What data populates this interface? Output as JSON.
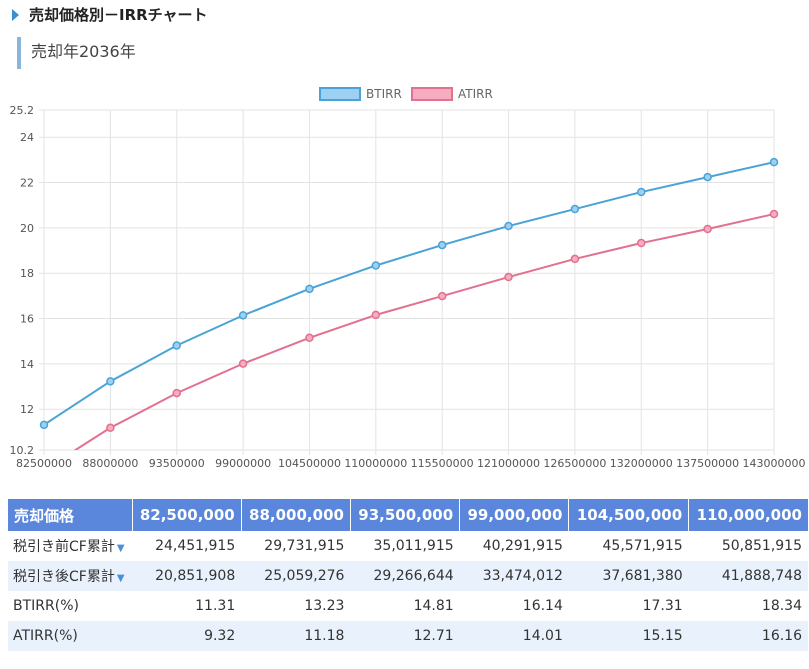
{
  "title": "売却価格別－IRRチャート",
  "subtitle": "売却年2036年",
  "chart_data": {
    "type": "line",
    "x": [
      "82500000",
      "88000000",
      "93500000",
      "99000000",
      "104500000",
      "110000000",
      "115500000",
      "121000000",
      "126500000",
      "132000000",
      "137500000",
      "143000000"
    ],
    "series": [
      {
        "name": "BTIRR",
        "color": "#4aa3d6",
        "fill": "#9dd0f3",
        "values": [
          11.31,
          13.23,
          14.81,
          16.14,
          17.31,
          18.34,
          19.24,
          20.08,
          20.83,
          21.58,
          22.24,
          22.9
        ]
      },
      {
        "name": "ATIRR",
        "color": "#e2708f",
        "fill": "#f5adbf",
        "values": [
          9.32,
          11.18,
          12.71,
          14.01,
          15.15,
          16.16,
          16.99,
          17.83,
          18.63,
          19.33,
          19.95,
          20.61
        ]
      }
    ],
    "ylim": [
      10.2,
      25.2
    ],
    "yticks": [
      "10.2",
      "12",
      "14",
      "16",
      "18",
      "20",
      "22",
      "24",
      "25.2"
    ],
    "grid": true,
    "legend": "top"
  },
  "table": {
    "header": [
      "売却価格",
      "82,500,000",
      "88,000,000",
      "93,500,000",
      "99,000,000",
      "104,500,000",
      "110,000,000"
    ],
    "rows": [
      [
        "税引き前CF累計",
        "24,451,915",
        "29,731,915",
        "35,011,915",
        "40,291,915",
        "45,571,915",
        "50,851,915"
      ],
      [
        "税引き後CF累計",
        "20,851,908",
        "25,059,276",
        "29,266,644",
        "33,474,012",
        "37,681,380",
        "41,888,748"
      ],
      [
        "BTIRR(%)",
        "11.31",
        "13.23",
        "14.81",
        "16.14",
        "17.31",
        "18.34"
      ],
      [
        "ATIRR(%)",
        "9.32",
        "11.18",
        "12.71",
        "14.01",
        "15.15",
        "16.16"
      ]
    ]
  }
}
